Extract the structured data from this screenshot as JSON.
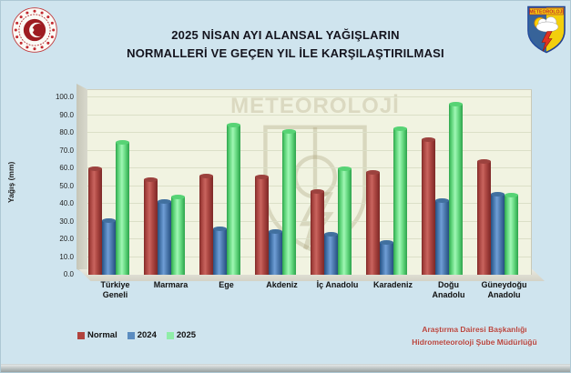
{
  "page": {
    "background": "#cfe4ee"
  },
  "header": {
    "title_line1": "2025 NİSAN AYI ALANSAL YAĞIŞLARIN",
    "title_line2": "NORMALLERİ VE GEÇEN YIL İLE KARŞILAŞTIRILMASI",
    "left_logo": "tc-ministry-emblem",
    "right_logo": "meteoroloji-shield",
    "right_logo_text": "METEOROLOJİ"
  },
  "chart_data": {
    "type": "bar",
    "title": "2025 NİSAN AYI ALANSAL YAĞIŞLARIN NORMALLERİ VE GEÇEN YIL İLE KARŞILAŞTIRILMASI",
    "xlabel": "",
    "ylabel": "Yağış (mm)",
    "ylim": [
      0,
      100
    ],
    "ytick_step": 10,
    "ytick_labels": [
      "0.0",
      "10.0",
      "20.0",
      "30.0",
      "40.0",
      "50.0",
      "60.0",
      "70.0",
      "80.0",
      "90.0",
      "100.0"
    ],
    "grid": true,
    "legend_position": "bottom-left",
    "watermark": "METEOROLOJİ",
    "categories": [
      "Türkiye Geneli",
      "Marmara",
      "Ege",
      "Akdeniz",
      "İç Anadolu",
      "Karadeniz",
      "Doğu Anadolu",
      "Güneydoğu Anadolu"
    ],
    "series": [
      {
        "name": "Normal",
        "color": "#b1433e",
        "values": [
          59.8,
          53.9,
          55.9,
          55.5,
          47.3,
          58.0,
          76.2,
          64.3
        ]
      },
      {
        "name": "2024",
        "color": "#5b8cc0",
        "values": [
          30.8,
          41.3,
          26.4,
          24.7,
          23.0,
          18.4,
          42.0,
          45.6
        ]
      },
      {
        "name": "2025",
        "color": "#8feda8",
        "values": [
          74.9,
          44.3,
          84.5,
          81.2,
          60.0,
          82.5,
          96.3,
          45.2
        ]
      }
    ]
  },
  "footer": {
    "credit_line1": "Araştırma Dairesi Başkanlığı",
    "credit_line2": "Hidrometeoroloji Şube Müdürlüğü"
  }
}
